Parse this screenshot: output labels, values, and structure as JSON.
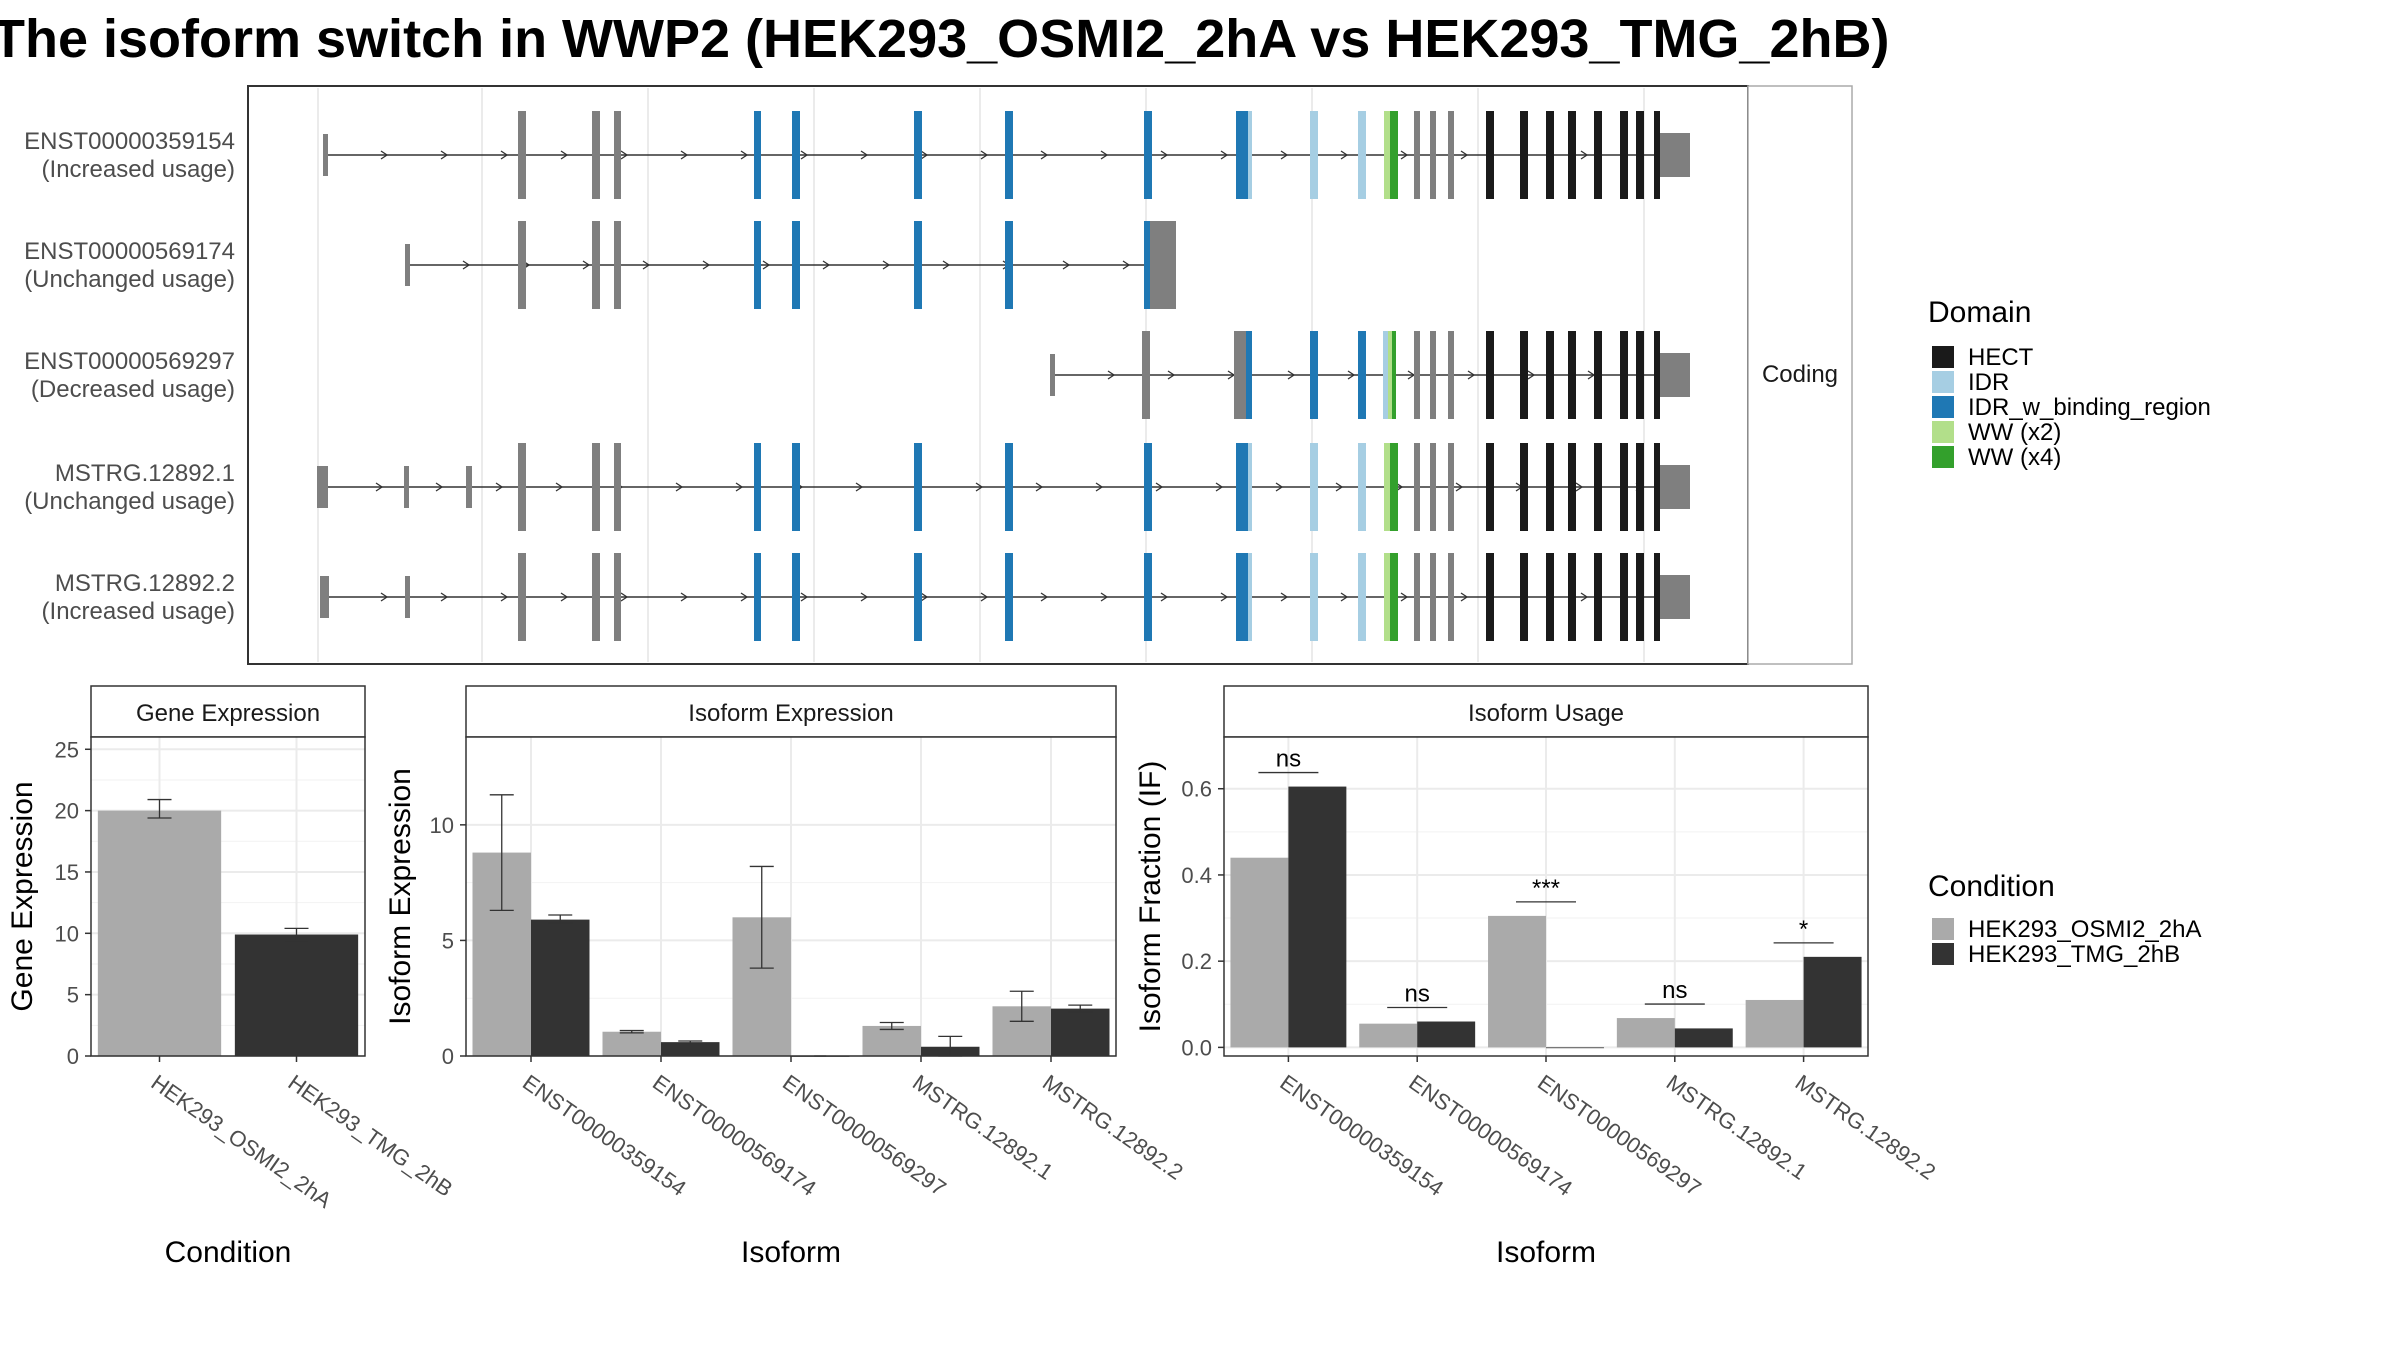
{
  "title": "The isoform switch in WWP2 (HEK293_OSMI2_2hA vs HEK293_TMG_2hB)",
  "colors": {
    "HECT": "#1a1a1a",
    "IDR": "#a6cee3",
    "IDR_w_binding_region": "#1f78b4",
    "WW (x2)": "#b2df8a",
    "WW (x4)": "#33a02c",
    "utr": "#7f7f7f",
    "cond1": "#aaaaaa",
    "cond2": "#333333"
  },
  "structure_panel": {
    "strip_label": "Coding",
    "isoforms": [
      {
        "id": "ENST00000359154",
        "status": "(Increased usage)"
      },
      {
        "id": "ENST00000569174",
        "status": "(Unchanged usage)"
      },
      {
        "id": "ENST00000569297",
        "status": "(Decreased usage)"
      },
      {
        "id": "MSTRG.12892.1",
        "status": "(Unchanged usage)"
      },
      {
        "id": "MSTRG.12892.2",
        "status": "(Increased usage)"
      }
    ]
  },
  "domain_legend": {
    "title": "Domain",
    "items": [
      "HECT",
      "IDR",
      "IDR_w_binding_region",
      "WW (x2)",
      "WW (x4)"
    ]
  },
  "condition_legend": {
    "title": "Condition",
    "items": [
      "HEK293_OSMI2_2hA",
      "HEK293_TMG_2hB"
    ]
  },
  "chart_data": [
    {
      "type": "bar",
      "title": "Gene Expression",
      "xlabel": "Condition",
      "ylabel": "Gene Expression",
      "categories": [
        "HEK293_OSMI2_2hA",
        "HEK293_TMG_2hB"
      ],
      "values": [
        20.0,
        9.9
      ],
      "error_low": [
        19.4,
        9.4
      ],
      "error_high": [
        20.9,
        10.4
      ],
      "ylim": [
        0,
        26
      ],
      "yticks": [
        0,
        5,
        10,
        15,
        20,
        25
      ],
      "grid": true
    },
    {
      "type": "bar",
      "title": "Isoform Expression",
      "xlabel": "Isoform",
      "ylabel": "Isoform Expression",
      "categories": [
        "ENST00000359154",
        "ENST00000569174",
        "ENST00000569297",
        "MSTRG.12892.1",
        "MSTRG.12892.2"
      ],
      "series": [
        {
          "name": "HEK293_OSMI2_2hA",
          "values": [
            8.8,
            1.05,
            6.0,
            1.3,
            2.15
          ],
          "error_low": [
            6.3,
            1.0,
            3.8,
            1.15,
            1.5
          ],
          "error_high": [
            11.3,
            1.1,
            8.2,
            1.45,
            2.8
          ]
        },
        {
          "name": "HEK293_TMG_2hB",
          "values": [
            5.9,
            0.6,
            0.0,
            0.4,
            2.05
          ],
          "error_low": [
            5.75,
            0.55,
            0.0,
            0.0,
            1.9
          ],
          "error_high": [
            6.1,
            0.65,
            0.0,
            0.85,
            2.2
          ]
        }
      ],
      "ylim": [
        0,
        13.8
      ],
      "yticks": [
        0,
        5,
        10
      ],
      "grid": true
    },
    {
      "type": "bar",
      "title": "Isoform Usage",
      "xlabel": "Isoform",
      "ylabel": "Isoform Fraction (IF)",
      "categories": [
        "ENST00000359154",
        "ENST00000569174",
        "ENST00000569297",
        "MSTRG.12892.1",
        "MSTRG.12892.2"
      ],
      "series": [
        {
          "name": "HEK293_OSMI2_2hA",
          "values": [
            0.44,
            0.055,
            0.305,
            0.068,
            0.11
          ]
        },
        {
          "name": "HEK293_TMG_2hB",
          "values": [
            0.605,
            0.06,
            0.0,
            0.044,
            0.21
          ]
        }
      ],
      "significance": [
        "ns",
        "ns",
        "***",
        "ns",
        "*"
      ],
      "ylim": [
        -0.02,
        0.72
      ],
      "yticks": [
        0.0,
        0.2,
        0.4,
        0.6
      ],
      "ytick_labels": [
        "0.0",
        "0.2",
        "0.4",
        "0.6"
      ],
      "grid": true
    }
  ]
}
